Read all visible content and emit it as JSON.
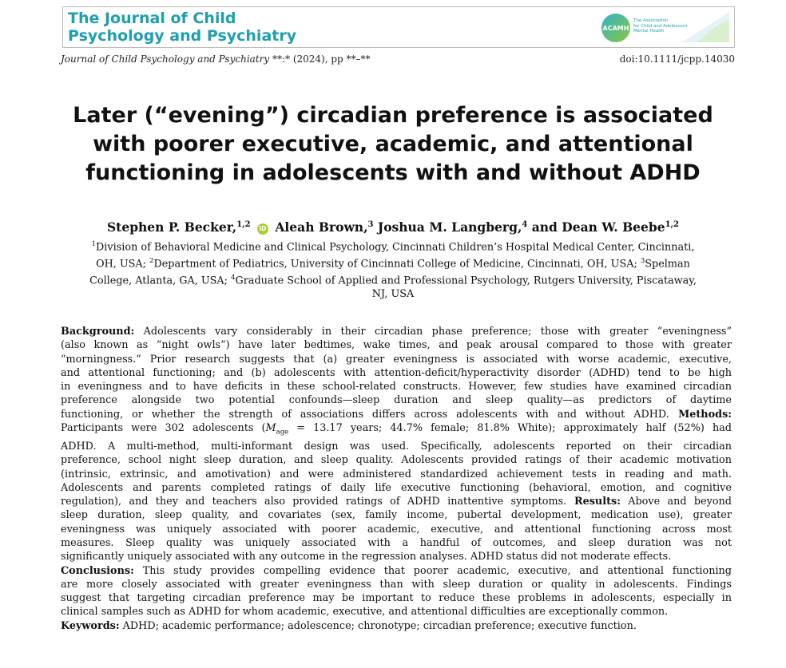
{
  "header": {
    "journal_line1": "The Journal of Child",
    "journal_line2": "Psychology and Psychiatry",
    "acamh_abbr": "ACAMH",
    "acamh_line1": "The Association",
    "acamh_line2": "for Child and Adolescent",
    "acamh_line3": "Mental Health"
  },
  "citation": {
    "journal": "Journal of Child Psychology and Psychiatry",
    "issue": " **:* (2024), pp **–**",
    "doi": "doi:10.1111/jcpp.14030"
  },
  "title": {
    "line1": "Later (“evening”) circadian preference is associated",
    "line2": "with poorer executive, academic, and attentional",
    "line3": "functioning in adolescents with and without ADHD"
  },
  "authors": {
    "a1": "Stephen P. Becker,",
    "a1_sup": "1,2",
    "orcid": "iD",
    "a2": "Aleah Brown,",
    "a2_sup": "3",
    "a3": "Joshua M. Langberg,",
    "a3_sup": "4",
    "a4": "and Dean W. Beebe",
    "a4_sup": "1,2"
  },
  "affiliations": {
    "s1": "1",
    "t1": "Division of Behavioral Medicine and Clinical Psychology, Cincinnati Children’s Hospital Medical Center, Cincinnati,",
    "t2": "OH, USA; ",
    "s2": "2",
    "t3": "Department of Pediatrics, University of Cincinnati College of Medicine, Cincinnati, OH, USA; ",
    "s3": "3",
    "t4": "Spelman",
    "t5": "College, Atlanta, GA, USA; ",
    "s4": "4",
    "t6": "Graduate School of Applied and Professional Psychology, Rutgers University, Piscataway,",
    "t7": "NJ, USA"
  },
  "abstract": {
    "background_label": "Background:",
    "l1": " Adolescents vary considerably in their circadian phase preference; those with greater “eveningness”",
    "l2": "(also known as “night owls”) have later bedtimes, wake times, and peak arousal compared to those with greater",
    "l3": "“morningness.” Prior research suggests that (a) greater eveningness is associated with worse academic, executive,",
    "l4": "and attentional functioning; and (b) adolescents with attention-deficit/hyperactivity disorder (ADHD) tend to be high",
    "l5": "in eveningness and to have deficits in these school-related constructs. However, few studies have examined circadian",
    "l6": "preference alongside two potential confounds—sleep duration and sleep quality—as predictors of daytime",
    "l7": "functioning, or whether the strength of associations differs across adolescents with and without ADHD.",
    "methods_label": " Methods:",
    "l8a": "Participants were 302 adolescents (",
    "l8_m": "M",
    "l8_sub": "age",
    "l8b": " = 13.17 years; 44.7% female; 81.8% White); approximately half (52%) had",
    "l9": "ADHD. A multi-method, multi-informant design was used. Specifically, adolescents reported on their circadian",
    "l10": "preference, school night sleep duration, and sleep quality. Adolescents provided ratings of their academic motivation",
    "l11": "(intrinsic, extrinsic, and amotivation) and were administered standardized achievement tests in reading and math.",
    "l12": "Adolescents and parents completed ratings of daily life executive functioning (behavioral, emotion, and cognitive",
    "l13": "regulation), and they and teachers also provided ratings of ADHD inattentive symptoms.",
    "results_label": " Results:",
    "l13b": " Above and beyond",
    "l14": "sleep duration, sleep quality, and covariates (sex, family income, pubertal development, medication use), greater",
    "l15": "eveningness was uniquely associated with poorer academic, executive, and attentional functioning across most",
    "l16": "measures. Sleep quality was uniquely associated with a handful of outcomes, and sleep duration was not",
    "l17": "significantly uniquely associated with any outcome in the regression analyses. ADHD status did not moderate effects.",
    "conclusions_label": "Conclusions:",
    "l18": " This study provides compelling evidence that poorer academic, executive, and attentional functioning",
    "l19": "are more closely associated with greater eveningness than with sleep duration or quality in adolescents. Findings",
    "l20": "suggest that targeting circadian preference may be important to reduce these problems in adolescents, especially in",
    "l21": "clinical samples such as ADHD for whom academic, executive, and attentional difficulties are exceptionally common.",
    "keywords_label": "Keywords:",
    "keywords": " ADHD; academic performance; adolescence; chronotype; circadian preference; executive function."
  }
}
